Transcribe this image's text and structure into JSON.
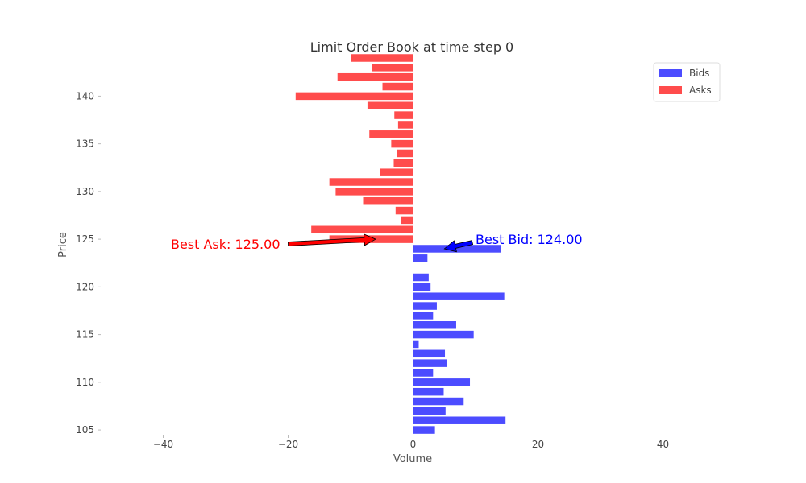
{
  "chart_data": {
    "type": "bar",
    "orientation": "horizontal",
    "title": "Limit Order Book at time step 0",
    "xlabel": "Volume",
    "ylabel": "Price",
    "xlim": [
      -50,
      50
    ],
    "ylim": [
      104.5,
      144
    ],
    "xticks": [
      -40,
      -20,
      0,
      20,
      40
    ],
    "xtick_labels": [
      "−40",
      "−20",
      "0",
      "20",
      "40"
    ],
    "yticks": [
      105,
      110,
      115,
      120,
      125,
      130,
      135,
      140
    ],
    "ytick_labels": [
      "105",
      "110",
      "115",
      "120",
      "125",
      "130",
      "135",
      "140"
    ],
    "grid": false,
    "legend_position": "top-right",
    "series": [
      {
        "name": "Bids",
        "color": "#4c4cff",
        "points": [
          {
            "price": 124,
            "volume": 14.1
          },
          {
            "price": 123,
            "volume": 2.3
          },
          {
            "price": 121,
            "volume": 2.5
          },
          {
            "price": 120,
            "volume": 2.8
          },
          {
            "price": 119,
            "volume": 14.6
          },
          {
            "price": 118,
            "volume": 3.8
          },
          {
            "price": 117,
            "volume": 3.2
          },
          {
            "price": 116,
            "volume": 6.9
          },
          {
            "price": 115,
            "volume": 9.7
          },
          {
            "price": 114,
            "volume": 0.9
          },
          {
            "price": 113,
            "volume": 5.1
          },
          {
            "price": 112,
            "volume": 5.4
          },
          {
            "price": 111,
            "volume": 3.2
          },
          {
            "price": 110,
            "volume": 9.1
          },
          {
            "price": 109,
            "volume": 4.9
          },
          {
            "price": 108,
            "volume": 8.1
          },
          {
            "price": 107,
            "volume": 5.2
          },
          {
            "price": 106,
            "volume": 14.8
          },
          {
            "price": 105,
            "volume": 3.5
          }
        ]
      },
      {
        "name": "Asks",
        "color": "#ff4c4c",
        "points": [
          {
            "price": 125,
            "volume": -13.4
          },
          {
            "price": 126,
            "volume": -16.3
          },
          {
            "price": 127,
            "volume": -1.9
          },
          {
            "price": 128,
            "volume": -2.8
          },
          {
            "price": 129,
            "volume": -8.0
          },
          {
            "price": 130,
            "volume": -12.4
          },
          {
            "price": 131,
            "volume": -13.4
          },
          {
            "price": 132,
            "volume": -5.3
          },
          {
            "price": 133,
            "volume": -3.1
          },
          {
            "price": 134,
            "volume": -2.6
          },
          {
            "price": 135,
            "volume": -3.5
          },
          {
            "price": 136,
            "volume": -7.0
          },
          {
            "price": 137,
            "volume": -2.4
          },
          {
            "price": 138,
            "volume": -3.0
          },
          {
            "price": 139,
            "volume": -7.3
          },
          {
            "price": 140,
            "volume": -18.8
          },
          {
            "price": 141,
            "volume": -4.9
          },
          {
            "price": 142,
            "volume": -12.1
          },
          {
            "price": 143,
            "volume": -6.6
          },
          {
            "price": 144,
            "volume": -9.9
          }
        ]
      }
    ],
    "annotations": [
      {
        "text": "Best Ask: 125.00",
        "target_price": 125,
        "target_volume": -6,
        "text_price": 124.5,
        "text_volume": -20,
        "color": "#ff0000"
      },
      {
        "text": "Best Bid: 124.00",
        "target_price": 124,
        "target_volume": 5,
        "text_price": 125,
        "text_volume": 10,
        "color": "#0000ff"
      }
    ]
  }
}
